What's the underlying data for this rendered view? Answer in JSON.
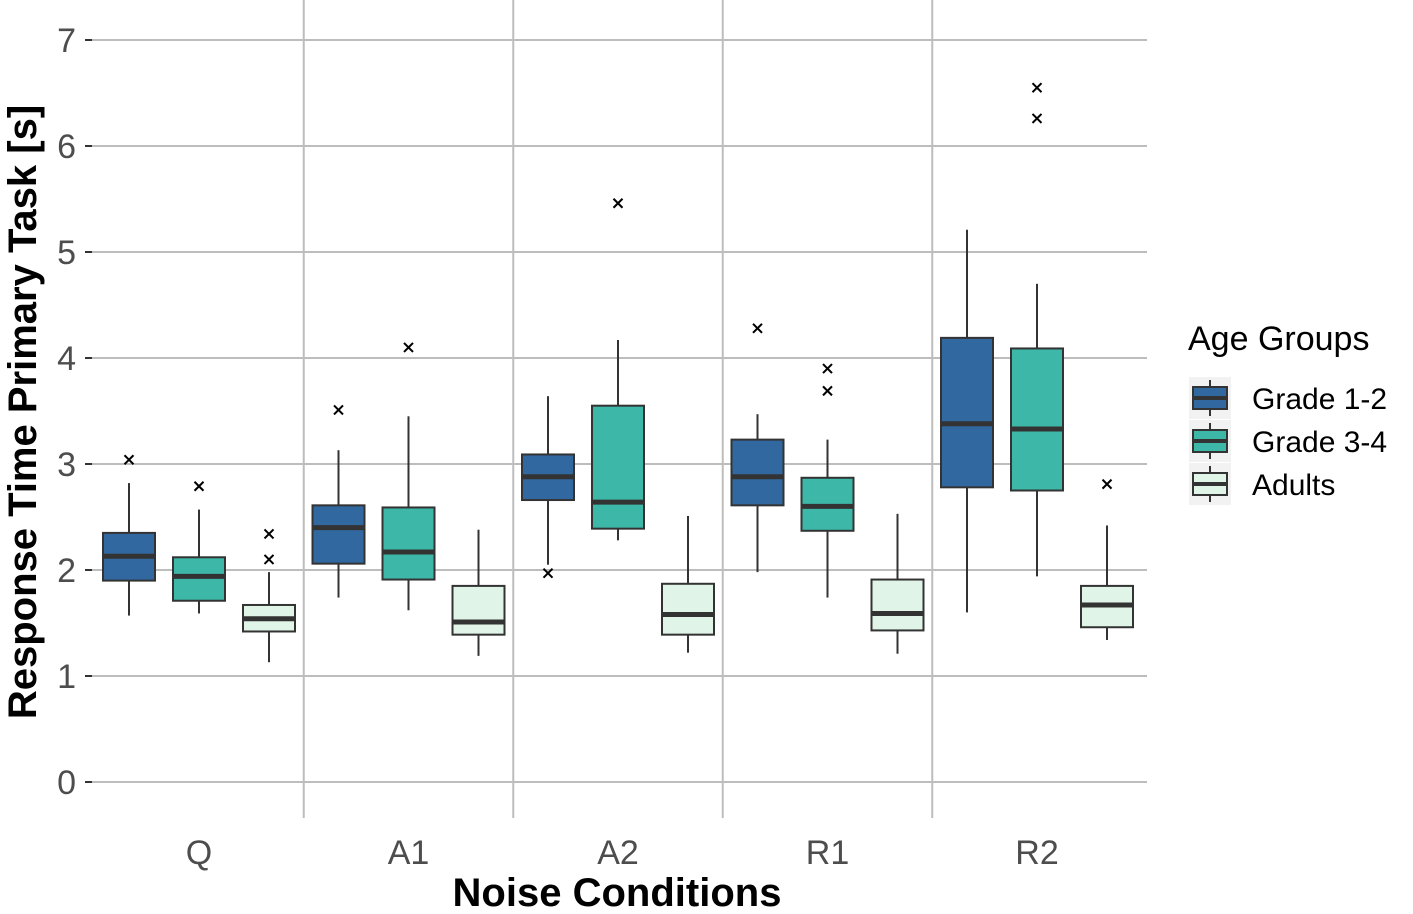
{
  "chart_data": {
    "type": "boxplot",
    "title": "",
    "xlabel": "Noise Conditions",
    "ylabel": "Response Time Primary Task [s]",
    "ylim": [
      0,
      7
    ],
    "yticks": [
      "0",
      "1",
      "2",
      "3",
      "4",
      "5",
      "6",
      "7"
    ],
    "categories": [
      "Q",
      "A1",
      "A2",
      "R1",
      "R2"
    ],
    "grid": true,
    "legend": {
      "title": "Age Groups",
      "position": "right",
      "entries": [
        "Grade 1-2",
        "Grade 3-4",
        "Adults"
      ]
    },
    "series": [
      {
        "name": "Grade 1-2",
        "color": "#31689f",
        "boxes": [
          {
            "whisker_low": 1.57,
            "q1": 1.9,
            "median": 2.13,
            "q3": 2.35,
            "whisker_high": 2.82,
            "outliers": [
              3.04
            ]
          },
          {
            "whisker_low": 1.74,
            "q1": 2.06,
            "median": 2.4,
            "q3": 2.61,
            "whisker_high": 3.13,
            "outliers": [
              3.51
            ]
          },
          {
            "whisker_low": 2.05,
            "q1": 2.66,
            "median": 2.88,
            "q3": 3.09,
            "whisker_high": 3.64,
            "outliers": [
              1.97
            ]
          },
          {
            "whisker_low": 1.98,
            "q1": 2.61,
            "median": 2.88,
            "q3": 3.23,
            "whisker_high": 3.47,
            "outliers": [
              4.28
            ]
          },
          {
            "whisker_low": 1.6,
            "q1": 2.78,
            "median": 3.38,
            "q3": 4.19,
            "whisker_high": 5.21,
            "outliers": []
          }
        ]
      },
      {
        "name": "Grade 3-4",
        "color": "#3db7a7",
        "boxes": [
          {
            "whisker_low": 1.59,
            "q1": 1.71,
            "median": 1.94,
            "q3": 2.12,
            "whisker_high": 2.57,
            "outliers": [
              2.79
            ]
          },
          {
            "whisker_low": 1.62,
            "q1": 1.91,
            "median": 2.17,
            "q3": 2.59,
            "whisker_high": 3.45,
            "outliers": [
              4.1
            ]
          },
          {
            "whisker_low": 2.28,
            "q1": 2.39,
            "median": 2.64,
            "q3": 3.55,
            "whisker_high": 4.17,
            "outliers": [
              5.46
            ]
          },
          {
            "whisker_low": 1.74,
            "q1": 2.37,
            "median": 2.6,
            "q3": 2.87,
            "whisker_high": 3.23,
            "outliers": [
              3.69,
              3.9
            ]
          },
          {
            "whisker_low": 1.94,
            "q1": 2.75,
            "median": 3.33,
            "q3": 4.09,
            "whisker_high": 4.7,
            "outliers": [
              6.26,
              6.55
            ]
          }
        ]
      },
      {
        "name": "Adults",
        "color": "#e0f4e7",
        "boxes": [
          {
            "whisker_low": 1.13,
            "q1": 1.42,
            "median": 1.54,
            "q3": 1.67,
            "whisker_high": 1.98,
            "outliers": [
              2.1,
              2.34
            ]
          },
          {
            "whisker_low": 1.19,
            "q1": 1.39,
            "median": 1.51,
            "q3": 1.85,
            "whisker_high": 2.38,
            "outliers": []
          },
          {
            "whisker_low": 1.22,
            "q1": 1.39,
            "median": 1.58,
            "q3": 1.87,
            "whisker_high": 2.51,
            "outliers": []
          },
          {
            "whisker_low": 1.21,
            "q1": 1.43,
            "median": 1.59,
            "q3": 1.91,
            "whisker_high": 2.53,
            "outliers": []
          },
          {
            "whisker_low": 1.34,
            "q1": 1.46,
            "median": 1.67,
            "q3": 1.85,
            "whisker_high": 2.42,
            "outliers": [
              2.81
            ]
          }
        ]
      }
    ]
  }
}
